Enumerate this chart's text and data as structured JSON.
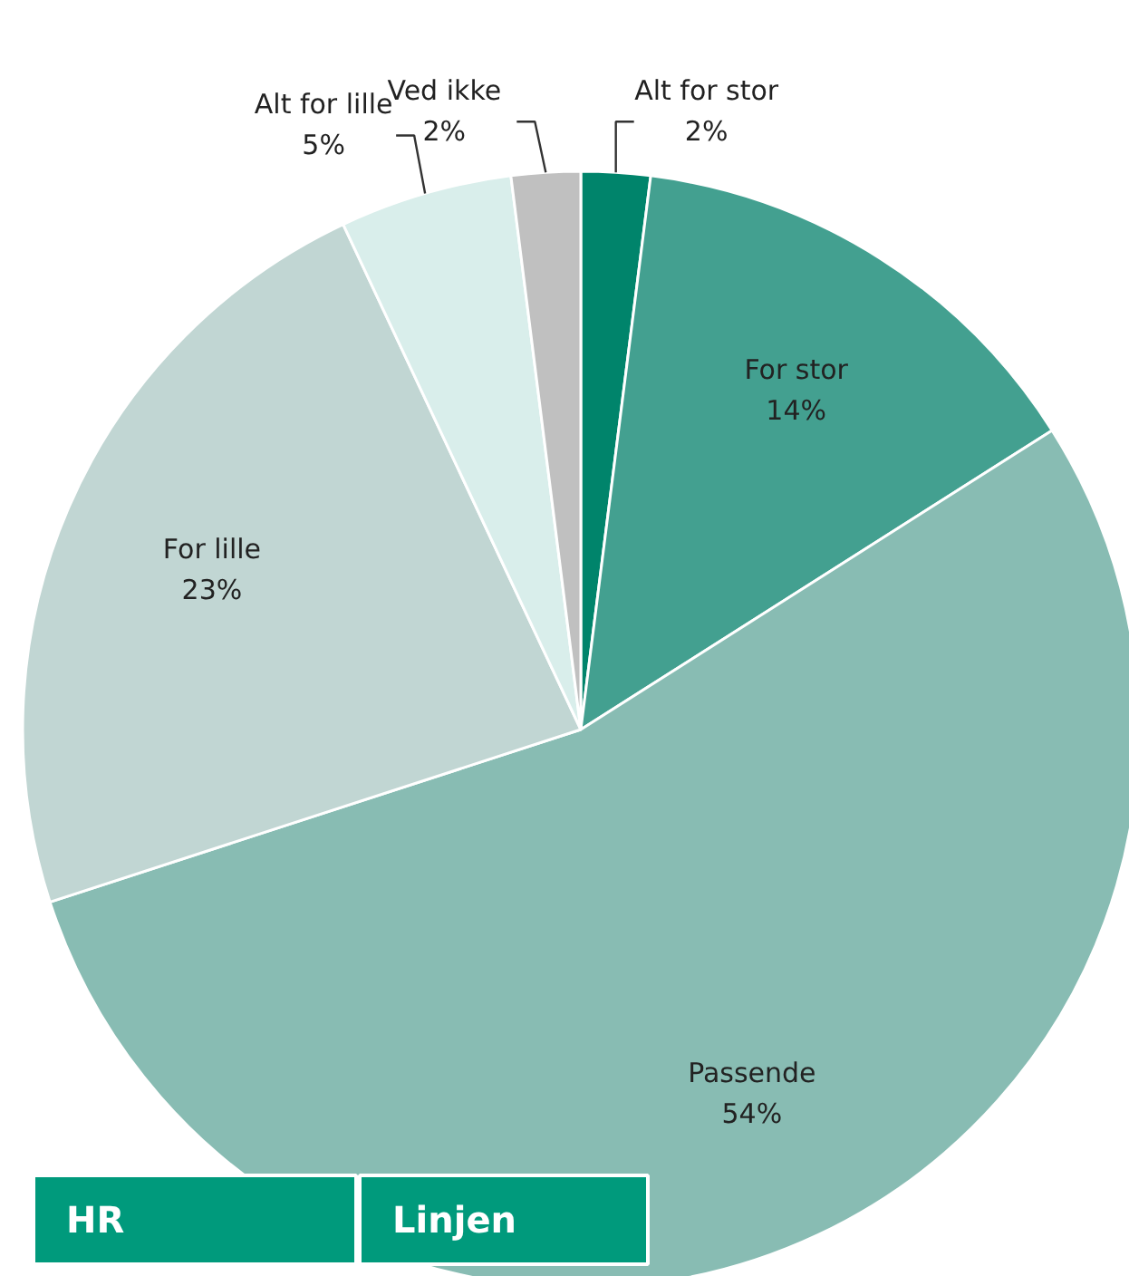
{
  "chart_data": {
    "type": "pie",
    "categories": [
      "Alt for stor",
      "For stor",
      "Passende",
      "For lille",
      "Alt for lille",
      "Ved ikke"
    ],
    "values": [
      2,
      14,
      54,
      23,
      5,
      2
    ],
    "colors": [
      "#00846b",
      "#43a090",
      "#88bcb3",
      "#c1d6d3",
      "#d9eeeb",
      "#c0c0c0"
    ],
    "value_labels": [
      "2%",
      "14%",
      "54%",
      "23%",
      "5%",
      "2%"
    ],
    "annotations": [
      "HR",
      "Linjen"
    ]
  }
}
